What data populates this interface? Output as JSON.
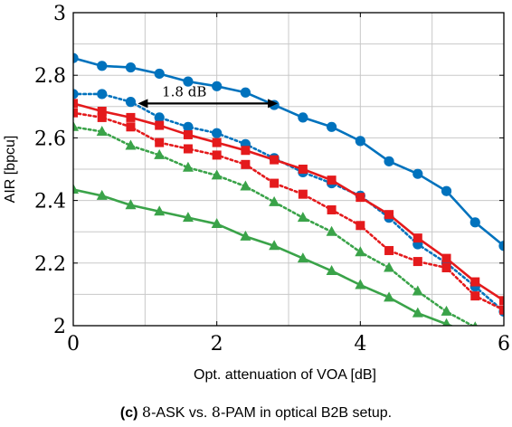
{
  "chart_data": {
    "type": "line",
    "xlabel": "Opt. attenuation of VOA [dB]",
    "ylabel": "AIR [bpcu]",
    "xlim": [
      0,
      6
    ],
    "ylim": [
      2,
      3
    ],
    "x_ticks": [
      "0",
      "2",
      "4",
      "6"
    ],
    "y_ticks": [
      "2",
      "2.2",
      "2.4",
      "2.6",
      "2.8",
      "3"
    ],
    "grid": true,
    "x": [
      0,
      0.4,
      0.8,
      1.2,
      1.6,
      2.0,
      2.4,
      2.8,
      3.2,
      3.6,
      4.0,
      4.4,
      4.8,
      5.2,
      5.6,
      6.0
    ],
    "series": [
      {
        "color": "#0072bd",
        "marker": "circle",
        "line": "solid",
        "values": [
          2.855,
          2.83,
          2.825,
          2.805,
          2.78,
          2.765,
          2.745,
          2.705,
          2.665,
          2.635,
          2.59,
          2.525,
          2.485,
          2.43,
          2.33,
          2.255
        ]
      },
      {
        "color": "#0072bd",
        "marker": "circle",
        "line": "dotted",
        "values": [
          2.74,
          2.74,
          2.715,
          2.665,
          2.635,
          2.615,
          2.58,
          2.535,
          2.49,
          2.455,
          2.415,
          2.345,
          2.26,
          2.2,
          2.125,
          2.045
        ]
      },
      {
        "color": "#e41a1c",
        "marker": "square",
        "line": "solid",
        "values": [
          2.71,
          2.685,
          2.665,
          2.64,
          2.61,
          2.585,
          2.56,
          2.53,
          2.5,
          2.465,
          2.41,
          2.355,
          2.28,
          2.215,
          2.14,
          2.08
        ]
      },
      {
        "color": "#e41a1c",
        "marker": "square",
        "line": "dotted",
        "values": [
          2.68,
          2.665,
          2.635,
          2.585,
          2.565,
          2.545,
          2.515,
          2.455,
          2.42,
          2.37,
          2.32,
          2.24,
          2.205,
          2.185,
          2.095,
          2.05
        ]
      },
      {
        "color": "#3aa349",
        "marker": "triangle",
        "line": "dotted",
        "values": [
          2.635,
          2.62,
          2.575,
          2.545,
          2.505,
          2.48,
          2.445,
          2.395,
          2.345,
          2.3,
          2.235,
          2.185,
          2.11,
          2.045,
          1.995,
          null
        ]
      },
      {
        "color": "#3aa349",
        "marker": "triangle",
        "line": "solid",
        "values": [
          2.435,
          2.415,
          2.385,
          2.365,
          2.345,
          2.325,
          2.285,
          2.255,
          2.215,
          2.175,
          2.13,
          2.09,
          2.04,
          2.005,
          null,
          null
        ]
      }
    ],
    "annotation": {
      "text": "1.8 dB",
      "x_from": 0.9,
      "x_to": 2.85,
      "y": 2.71
    }
  },
  "caption": {
    "label": "(c)",
    "m1": "8",
    "t1": "-ASK vs. ",
    "m2": "8",
    "t2": "-PAM in optical B2B setup."
  }
}
